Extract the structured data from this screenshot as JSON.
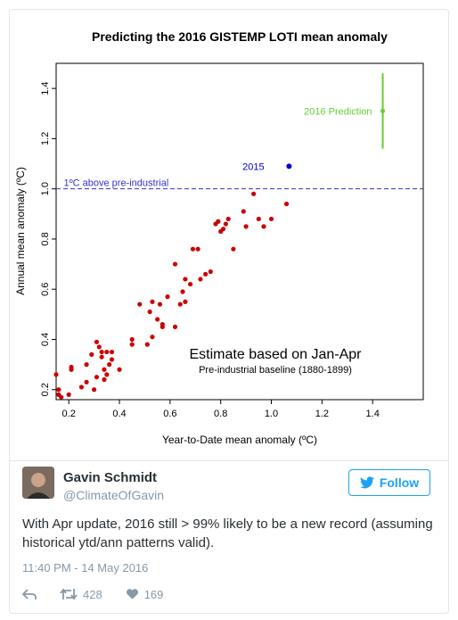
{
  "chart_data": {
    "type": "scatter",
    "title": "Predicting the 2016 GISTEMP LOTI mean anomaly",
    "xlabel": "Year-to-Date mean anomaly (ºC)",
    "ylabel": "Annual mean anomaly (ºC)",
    "xlim": [
      0.15,
      1.6
    ],
    "ylim": [
      0.16,
      1.5
    ],
    "xticks": [
      "0.2",
      "0.4",
      "0.6",
      "0.8",
      "1.0",
      "1.2",
      "1.4"
    ],
    "yticks": [
      "0.2",
      "0.4",
      "0.6",
      "0.8",
      "1.0",
      "1.2",
      "1.4"
    ],
    "xtick_values": [
      0.2,
      0.4,
      0.6,
      0.8,
      1.0,
      1.2,
      1.4
    ],
    "ytick_values": [
      0.2,
      0.4,
      0.6,
      0.8,
      1.0,
      1.2,
      1.4
    ],
    "grid": false,
    "points": [
      [
        0.15,
        0.26
      ],
      [
        0.16,
        0.2
      ],
      [
        0.16,
        0.18
      ],
      [
        0.17,
        0.17
      ],
      [
        0.21,
        0.29
      ],
      [
        0.21,
        0.28
      ],
      [
        0.2,
        0.18
      ],
      [
        0.25,
        0.21
      ],
      [
        0.27,
        0.23
      ],
      [
        0.27,
        0.3
      ],
      [
        0.29,
        0.34
      ],
      [
        0.3,
        0.2
      ],
      [
        0.31,
        0.39
      ],
      [
        0.31,
        0.25
      ],
      [
        0.32,
        0.37
      ],
      [
        0.33,
        0.35
      ],
      [
        0.33,
        0.33
      ],
      [
        0.34,
        0.28
      ],
      [
        0.34,
        0.24
      ],
      [
        0.35,
        0.26
      ],
      [
        0.35,
        0.35
      ],
      [
        0.36,
        0.3
      ],
      [
        0.37,
        0.35
      ],
      [
        0.37,
        0.32
      ],
      [
        0.4,
        0.28
      ],
      [
        0.45,
        0.38
      ],
      [
        0.45,
        0.4
      ],
      [
        0.48,
        0.54
      ],
      [
        0.51,
        0.38
      ],
      [
        0.52,
        0.51
      ],
      [
        0.53,
        0.55
      ],
      [
        0.53,
        0.41
      ],
      [
        0.55,
        0.48
      ],
      [
        0.56,
        0.54
      ],
      [
        0.57,
        0.46
      ],
      [
        0.57,
        0.45
      ],
      [
        0.59,
        0.57
      ],
      [
        0.62,
        0.7
      ],
      [
        0.62,
        0.45
      ],
      [
        0.64,
        0.54
      ],
      [
        0.65,
        0.59
      ],
      [
        0.66,
        0.64
      ],
      [
        0.66,
        0.55
      ],
      [
        0.68,
        0.62
      ],
      [
        0.69,
        0.76
      ],
      [
        0.71,
        0.76
      ],
      [
        0.72,
        0.64
      ],
      [
        0.74,
        0.66
      ],
      [
        0.76,
        0.67
      ],
      [
        0.78,
        0.86
      ],
      [
        0.79,
        0.87
      ],
      [
        0.8,
        0.83
      ],
      [
        0.81,
        0.84
      ],
      [
        0.82,
        0.86
      ],
      [
        0.83,
        0.88
      ],
      [
        0.85,
        0.76
      ],
      [
        0.89,
        0.91
      ],
      [
        0.9,
        0.85
      ],
      [
        0.93,
        0.98
      ],
      [
        0.95,
        0.88
      ],
      [
        0.97,
        0.85
      ],
      [
        1.0,
        0.88
      ],
      [
        1.06,
        0.94
      ]
    ],
    "point_color": "#cc0000",
    "hline": {
      "y": 1.0,
      "label": "1ºC above pre-industrial",
      "color": "#3333cc"
    },
    "highlight": {
      "x": 1.07,
      "y": 1.09,
      "label": "2015",
      "color": "#0000cc"
    },
    "prediction": {
      "x": 1.44,
      "y": 1.31,
      "low": 1.16,
      "high": 1.46,
      "label": "2016 Prediction",
      "color": "#66cc33"
    },
    "annotation_main": "Estimate based on Jan-Apr",
    "annotation_sub": "Pre-industrial baseline (1880-1899)"
  },
  "tweet": {
    "name": "Gavin Schmidt",
    "handle": "@ClimateOfGavin",
    "follow_label": "Follow",
    "text": "With Apr update, 2016 still > 99% likely to be a new record (assuming historical ytd/ann patterns valid).",
    "timestamp": "11:40 PM - 14 May 2016",
    "retweets": "428",
    "likes": "169",
    "accent_color": "#1da1f2"
  }
}
